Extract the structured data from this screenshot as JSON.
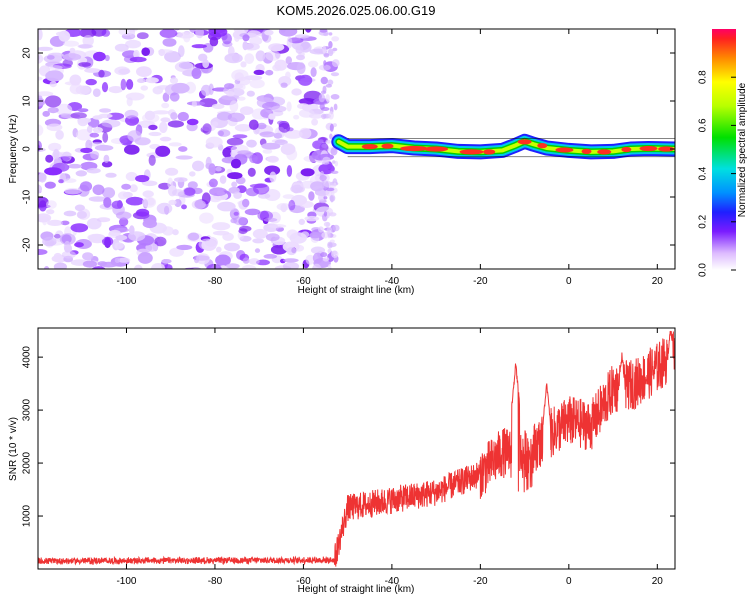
{
  "title": "KOM5.2026.025.06.00.G19",
  "chart_data": [
    {
      "type": "heatmap",
      "xlabel": "Height of straight line (km)",
      "ylabel": "Frequency (Hz)",
      "xlim": [
        -120,
        24
      ],
      "ylim": [
        -25,
        25
      ],
      "xticks": [
        -100,
        -80,
        -60,
        -40,
        -20,
        0,
        20
      ],
      "yticks": [
        -20,
        -10,
        0,
        10,
        20
      ],
      "xtick_labels": [
        "-100",
        "-80",
        "-60",
        "-40",
        "-20",
        "0",
        "20"
      ],
      "ytick_labels": [
        "-20",
        "-10",
        "0",
        "10",
        "20"
      ],
      "noise_region_x": [
        -120,
        -52
      ],
      "signal_onset_x": -52,
      "signal_track": [
        {
          "x": -52,
          "y": 1.5
        },
        {
          "x": -50,
          "y": 0.5
        },
        {
          "x": -45,
          "y": 0.5
        },
        {
          "x": -40,
          "y": 0.7
        },
        {
          "x": -35,
          "y": 0.2
        },
        {
          "x": -30,
          "y": 0.0
        },
        {
          "x": -25,
          "y": -0.5
        },
        {
          "x": -20,
          "y": -0.6
        },
        {
          "x": -15,
          "y": -0.3
        },
        {
          "x": -12,
          "y": 0.8
        },
        {
          "x": -10,
          "y": 1.6
        },
        {
          "x": -8,
          "y": 1.0
        },
        {
          "x": -5,
          "y": 0.2
        },
        {
          "x": 0,
          "y": -0.3
        },
        {
          "x": 5,
          "y": -0.6
        },
        {
          "x": 10,
          "y": -0.5
        },
        {
          "x": 14,
          "y": 0.0
        },
        {
          "x": 18,
          "y": 0.1
        },
        {
          "x": 24,
          "y": 0.0
        }
      ],
      "colorbar": {
        "label": "Normalized spectral amplitude",
        "range": [
          0,
          1
        ],
        "ticks": [
          0.0,
          0.2,
          0.4,
          0.6,
          0.8
        ],
        "tick_labels": [
          "0.0",
          "0.2",
          "0.4",
          "0.6",
          "0.8"
        ]
      }
    },
    {
      "type": "line",
      "xlabel": "Height of straight line (km)",
      "ylabel": "SNR (10 * v/v)",
      "xlim": [
        -120,
        24
      ],
      "ylim": [
        0,
        4550
      ],
      "xticks": [
        -100,
        -80,
        -60,
        -40,
        -20,
        0,
        20
      ],
      "yticks": [
        1000,
        2000,
        3000,
        4000
      ],
      "xtick_labels": [
        "-100",
        "-80",
        "-60",
        "-40",
        "-20",
        "0",
        "20"
      ],
      "ytick_labels": [
        "1000",
        "2000",
        "3000",
        "4000"
      ],
      "series_color": "#ee3333",
      "trend": [
        {
          "x": -120,
          "y": 150
        },
        {
          "x": -53,
          "y": 170
        },
        {
          "x": -50,
          "y": 1150
        },
        {
          "x": -40,
          "y": 1300
        },
        {
          "x": -30,
          "y": 1450
        },
        {
          "x": -20,
          "y": 1800
        },
        {
          "x": -15,
          "y": 2200
        },
        {
          "x": -10,
          "y": 2150
        },
        {
          "x": -5,
          "y": 2500
        },
        {
          "x": 0,
          "y": 2800
        },
        {
          "x": 5,
          "y": 2700
        },
        {
          "x": 10,
          "y": 3400
        },
        {
          "x": 15,
          "y": 3500
        },
        {
          "x": 20,
          "y": 3800
        },
        {
          "x": 24,
          "y": 4100
        }
      ],
      "peaks": [
        {
          "x": -12,
          "y": 3880
        },
        {
          "x": -5,
          "y": 3500
        },
        {
          "x": 12,
          "y": 4050
        },
        {
          "x": 23,
          "y": 4550
        }
      ]
    }
  ]
}
